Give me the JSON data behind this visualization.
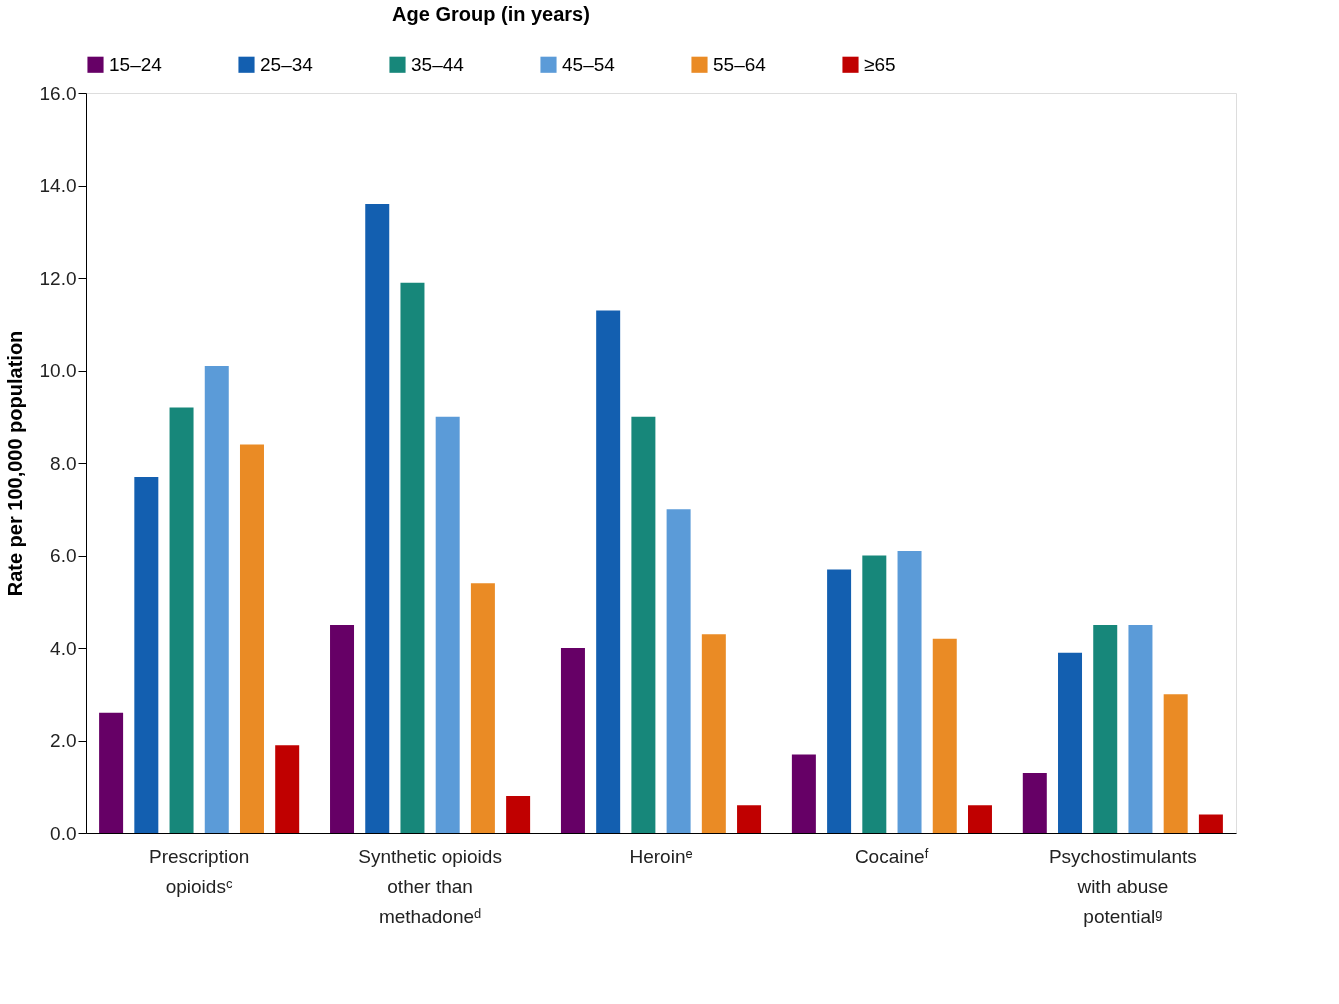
{
  "chart_data": {
    "type": "bar",
    "legend_title": "Age Group (in years)",
    "ylabel": "Rate per 100,000 population",
    "categories": [
      "Prescription opioidsᶜ",
      "Synthetic opioids other than methadoneᵈ",
      "Heroinᵉ",
      "Cocaineᶠ",
      "Psychostimulants with abuse potentialᵍ"
    ],
    "series": [
      {
        "name": "15–24",
        "color": "#660066",
        "values": [
          2.6,
          4.5,
          4.0,
          1.7,
          1.3
        ]
      },
      {
        "name": "25–34",
        "color": "#135fb0",
        "values": [
          7.7,
          13.6,
          11.3,
          5.7,
          3.9
        ]
      },
      {
        "name": "35–44",
        "color": "#17877a",
        "values": [
          9.2,
          11.9,
          9.0,
          6.0,
          4.5
        ]
      },
      {
        "name": "45–54",
        "color": "#5b9bd8",
        "values": [
          10.1,
          9.0,
          7.0,
          6.1,
          4.5
        ]
      },
      {
        "name": "55–64",
        "color": "#ea8b25",
        "values": [
          8.4,
          5.4,
          4.3,
          4.2,
          3.0
        ]
      },
      {
        "name": "≥65",
        "color": "#c00000",
        "values": [
          1.9,
          0.8,
          0.6,
          0.6,
          0.4
        ]
      }
    ],
    "ylim": [
      0,
      16
    ],
    "yticks": [
      {
        "value": 0,
        "label": "0.0"
      },
      {
        "value": 2,
        "label": "2.0"
      },
      {
        "value": 4,
        "label": "4.0"
      },
      {
        "value": 6,
        "label": "6.0"
      },
      {
        "value": 8,
        "label": "8.0"
      },
      {
        "value": 10,
        "label": "10.0"
      },
      {
        "value": 12,
        "label": "12.0"
      },
      {
        "value": 14,
        "label": "14.0"
      },
      {
        "value": 16,
        "label": "16.0"
      }
    ],
    "grid": false,
    "legend": "top"
  }
}
